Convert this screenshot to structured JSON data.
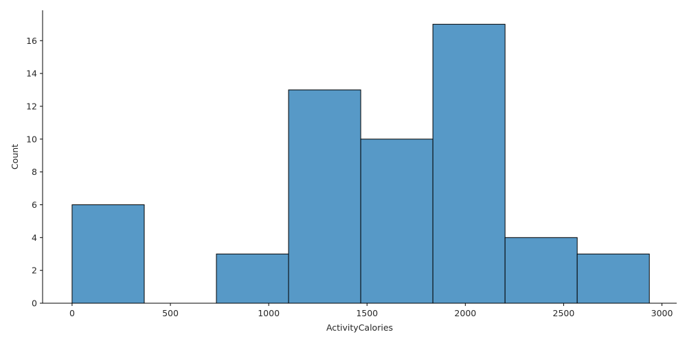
{
  "chart_data": {
    "type": "bar",
    "subtype": "histogram",
    "title": "",
    "xlabel": "ActivityCalories",
    "ylabel": "Count",
    "xlim": [
      -150,
      3075
    ],
    "ylim": [
      0,
      17.85
    ],
    "x_ticks": [
      0,
      500,
      1000,
      1500,
      2000,
      2500,
      3000
    ],
    "y_ticks": [
      0,
      2,
      4,
      6,
      8,
      10,
      12,
      14,
      16
    ],
    "bins": [
      {
        "x0": 0,
        "x1": 367,
        "count": 6
      },
      {
        "x0": 367,
        "x1": 734,
        "count": 0
      },
      {
        "x0": 734,
        "x1": 1101,
        "count": 3
      },
      {
        "x0": 1101,
        "x1": 1468,
        "count": 13
      },
      {
        "x0": 1468,
        "x1": 1835,
        "count": 10
      },
      {
        "x0": 1835,
        "x1": 2202,
        "count": 17
      },
      {
        "x0": 2202,
        "x1": 2569,
        "count": 4
      },
      {
        "x0": 2569,
        "x1": 2936,
        "count": 3
      }
    ],
    "grid": false,
    "legend": "none",
    "colors": {
      "bar_fill": "#5799c7",
      "bar_edge": "#000000",
      "axis": "#000000",
      "text": "#262626"
    }
  }
}
